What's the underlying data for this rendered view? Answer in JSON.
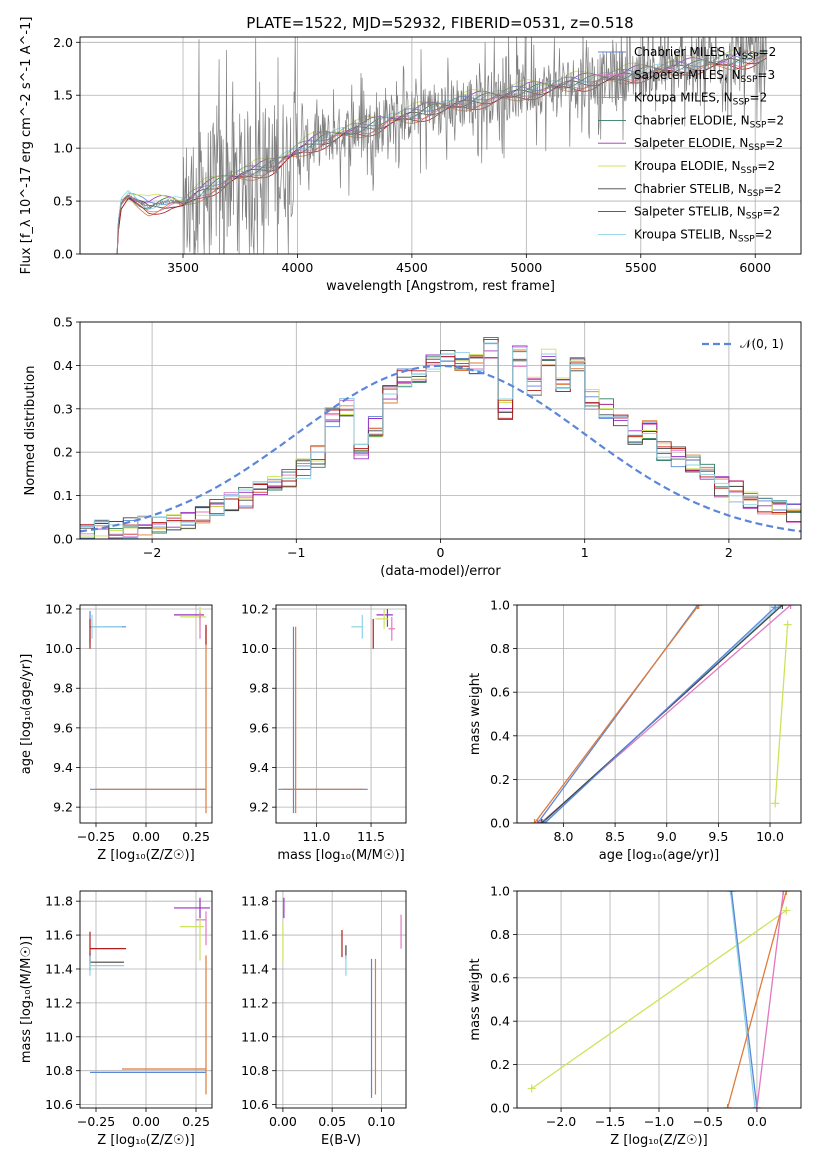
{
  "colors": {
    "Chabrier MILES": "#5b86d9",
    "Salpeter MILES": "#e377c2",
    "Kroupa MILES": "#e07b39",
    "Chabrier ELODIE": "#2f7d5e",
    "Salpeter ELODIE": "#9b30c0",
    "Kroupa ELODIE": "#cde35c",
    "Chabrier STELIB": "#444444",
    "Salpeter STELIB": "#b01c1c",
    "Kroupa STELIB": "#8fd3e6",
    "spectrum": "#808080",
    "gaussian": "#5b86d9"
  },
  "chart_data": [
    {
      "id": "spectrum",
      "type": "line",
      "title": "PLATE=1522, MJD=52932, FIBERID=0531, z=0.518",
      "xlabel": "wavelength [Angstrom, rest frame]",
      "ylabel": "Flux [f_λ 10^-17 erg cm^-2 s^-1 A^-1]",
      "xlim": [
        3050,
        6200
      ],
      "ylim": [
        0,
        2.05
      ],
      "xticks": [
        3500,
        4000,
        4500,
        5000,
        5500,
        6000
      ],
      "yticks": [
        0.0,
        0.5,
        1.0,
        1.5,
        2.0
      ],
      "ytick_labels": [
        "0.0",
        "0.5",
        "1.0",
        "1.5",
        "2.0"
      ],
      "grid": true,
      "legend_position": "right",
      "legend": [
        {
          "model": "Chabrier MILES",
          "label": "Chabrier MILES, N",
          "nssp": "=2"
        },
        {
          "model": "Salpeter MILES",
          "label": "Salpeter MILES, N",
          "nssp": "=3"
        },
        {
          "model": "Kroupa MILES",
          "label": "Kroupa MILES, N",
          "nssp": "=2"
        },
        {
          "model": "Chabrier ELODIE",
          "label": "Chabrier ELODIE, N",
          "nssp": "=2"
        },
        {
          "model": "Salpeter ELODIE",
          "label": "Salpeter ELODIE, N",
          "nssp": "=2"
        },
        {
          "model": "Kroupa ELODIE",
          "label": "Kroupa ELODIE, N",
          "nssp": "=2"
        },
        {
          "model": "Chabrier STELIB",
          "label": "Chabrier STELIB, N",
          "nssp": "=2"
        },
        {
          "model": "Salpeter STELIB",
          "label": "Salpeter STELIB, N",
          "nssp": "=2"
        },
        {
          "model": "Kroupa STELIB",
          "label": "Kroupa STELIB, N",
          "nssp": "=2"
        }
      ],
      "nssp_subscript": "SSP",
      "continuum": {
        "x": [
          3200,
          3230,
          3260,
          3300,
          3350,
          3400,
          3450,
          3500,
          3550,
          3600,
          3700,
          3800,
          3900,
          4000,
          4100,
          4200,
          4300,
          4400,
          4500,
          4600,
          4700,
          4800,
          4900,
          5000,
          5100,
          5200,
          5300,
          5400,
          5500,
          5600,
          5700,
          5800,
          5900,
          6000,
          6050
        ],
        "y": [
          0.0,
          0.48,
          0.55,
          0.5,
          0.45,
          0.48,
          0.5,
          0.48,
          0.55,
          0.62,
          0.72,
          0.78,
          0.85,
          0.98,
          1.08,
          1.15,
          1.2,
          1.27,
          1.32,
          1.38,
          1.42,
          1.47,
          1.5,
          1.55,
          1.58,
          1.62,
          1.65,
          1.68,
          1.72,
          1.75,
          1.78,
          1.8,
          1.83,
          1.86,
          1.88
        ]
      }
    },
    {
      "id": "residuals",
      "type": "line",
      "xlabel": "(data-model)/error",
      "ylabel": "Normed distribution",
      "xlim": [
        -2.5,
        2.5
      ],
      "ylim": [
        0,
        0.5
      ],
      "xticks": [
        -2,
        -1,
        0,
        1,
        2
      ],
      "xtick_labels": [
        "−2",
        "−1",
        "0",
        "1",
        "2"
      ],
      "yticks": [
        0.0,
        0.1,
        0.2,
        0.3,
        0.4,
        0.5
      ],
      "ytick_labels": [
        "0.0",
        "0.1",
        "0.2",
        "0.3",
        "0.4",
        "0.5"
      ],
      "grid": true,
      "legend_label": "𝒩(0, 1)",
      "legend_position": "top-right",
      "gaussian": {
        "mean": 0,
        "sigma": 1
      },
      "bin_edges": [
        -2.5,
        -2.4,
        -2.3,
        -2.2,
        -2.1,
        -2.0,
        -1.9,
        -1.8,
        -1.7,
        -1.6,
        -1.5,
        -1.4,
        -1.3,
        -1.2,
        -1.1,
        -1.0,
        -0.9,
        -0.8,
        -0.7,
        -0.6,
        -0.5,
        -0.4,
        -0.3,
        -0.2,
        -0.1,
        0.0,
        0.1,
        0.2,
        0.3,
        0.4,
        0.5,
        0.6,
        0.7,
        0.8,
        0.9,
        1.0,
        1.1,
        1.2,
        1.3,
        1.4,
        1.5,
        1.6,
        1.7,
        1.8,
        1.9,
        2.0,
        2.1,
        2.2,
        2.3,
        2.4,
        2.5
      ],
      "hist_base": [
        0.015,
        0.02,
        0.02,
        0.025,
        0.03,
        0.035,
        0.04,
        0.045,
        0.06,
        0.07,
        0.085,
        0.095,
        0.11,
        0.12,
        0.14,
        0.16,
        0.19,
        0.28,
        0.3,
        0.2,
        0.26,
        0.33,
        0.37,
        0.38,
        0.4,
        0.42,
        0.41,
        0.4,
        0.44,
        0.3,
        0.42,
        0.35,
        0.42,
        0.36,
        0.4,
        0.32,
        0.3,
        0.27,
        0.23,
        0.25,
        0.2,
        0.19,
        0.17,
        0.15,
        0.12,
        0.11,
        0.09,
        0.075,
        0.065,
        0.06
      ]
    },
    {
      "id": "age_vs_Z",
      "type": "scatter",
      "xlabel": "Z [log₁₀(Z/Z☉)]",
      "ylabel": "age  [log₁₀(age/yr)]",
      "xlim": [
        -0.33,
        0.33
      ],
      "ylim": [
        9.12,
        10.22
      ],
      "xticks": [
        -0.25,
        0.0,
        0.25
      ],
      "xtick_labels": [
        "−0.25",
        "0.00",
        "0.25"
      ],
      "yticks": [
        9.2,
        9.4,
        9.6,
        9.8,
        10.0,
        10.2
      ],
      "grid": true,
      "errorbars": [
        {
          "model": "Chabrier MILES",
          "x": 0.3,
          "y": 9.29,
          "xerr": [
            0.58,
            0.0
          ],
          "yerr": [
            0,
            0
          ]
        },
        {
          "model": "Kroupa MILES",
          "x": 0.3,
          "y": 9.29,
          "xerr": [
            0.55,
            0.0
          ],
          "yerr": [
            0.12,
            0.82
          ]
        },
        {
          "model": "Chabrier MILES",
          "x": -0.28,
          "y": 10.11,
          "xerr": [
            0,
            0.18
          ],
          "yerr": [
            0.08,
            0.08
          ]
        },
        {
          "model": "Kroupa STELIB",
          "x": -0.27,
          "y": 10.11,
          "xerr": [
            0,
            0.15
          ],
          "yerr": [
            0.06,
            0.06
          ]
        },
        {
          "model": "Salpeter STELIB",
          "x": -0.28,
          "y": 10.05,
          "xerr": [
            0,
            0
          ],
          "yerr": [
            0.05,
            0.1
          ]
        },
        {
          "model": "Salpeter ELODIE",
          "x": 0.27,
          "y": 10.17,
          "xerr": [
            0.13,
            0.02
          ],
          "yerr": [
            0.02,
            0.02
          ]
        },
        {
          "model": "Kroupa ELODIE",
          "x": 0.27,
          "y": 10.16,
          "xerr": [
            0.1,
            0.03
          ],
          "yerr": [
            0.05,
            0.05
          ]
        },
        {
          "model": "Salpeter MILES",
          "x": 0.27,
          "y": 10.1,
          "xerr": [
            0,
            0
          ],
          "yerr": [
            0.05,
            0.08
          ]
        },
        {
          "model": "Salpeter STELIB",
          "x": 0.3,
          "y": 10.12,
          "xerr": [
            0,
            0
          ],
          "yerr": [
            0.1,
            0.0
          ]
        }
      ]
    },
    {
      "id": "age_vs_mass",
      "type": "scatter",
      "xlabel": "mass [log₁₀(M/M☉)]",
      "ylabel": "",
      "xlim": [
        10.63,
        11.82
      ],
      "ylim": [
        9.12,
        10.22
      ],
      "xticks": [
        11.0,
        11.5
      ],
      "xtick_labels": [
        "11.0",
        "11.5"
      ],
      "yticks": [
        9.2,
        9.4,
        9.6,
        9.8,
        10.0,
        10.2
      ],
      "grid": true,
      "errorbars": [
        {
          "model": "Chabrier MILES",
          "x": 10.79,
          "y": 9.29,
          "xerr": [
            0.14,
            0.68
          ],
          "yerr": [
            0.12,
            0.82
          ]
        },
        {
          "model": "Kroupa MILES",
          "x": 10.81,
          "y": 9.29,
          "xerr": [
            0.12,
            0.62
          ],
          "yerr": [
            0.12,
            0.82
          ]
        },
        {
          "model": "Kroupa STELIB",
          "x": 11.42,
          "y": 10.11,
          "xerr": [
            0.1,
            0.0
          ],
          "yerr": [
            0.06,
            0.06
          ]
        },
        {
          "model": "Salpeter STELIB",
          "x": 11.52,
          "y": 10.05,
          "xerr": [
            0,
            0
          ],
          "yerr": [
            0.05,
            0.1
          ]
        },
        {
          "model": "Salpeter ELODIE",
          "x": 11.65,
          "y": 10.17,
          "xerr": [
            0.1,
            0.05
          ],
          "yerr": [
            0.06,
            0.03
          ]
        },
        {
          "model": "Kroupa ELODIE",
          "x": 11.62,
          "y": 10.15,
          "xerr": [
            0.08,
            0.04
          ],
          "yerr": [
            0.05,
            0.05
          ]
        },
        {
          "model": "Salpeter MILES",
          "x": 11.69,
          "y": 10.1,
          "xerr": [
            0.03,
            0.03
          ],
          "yerr": [
            0.06,
            0.06
          ]
        }
      ]
    },
    {
      "id": "weight_vs_age",
      "type": "line",
      "xlabel": "age  [log₁₀(age/yr)]",
      "ylabel": "mass weight",
      "xlim": [
        7.55,
        10.3
      ],
      "ylim": [
        0,
        1.0
      ],
      "xticks": [
        8.0,
        8.5,
        9.0,
        9.5,
        10.0
      ],
      "yticks": [
        0.0,
        0.2,
        0.4,
        0.6,
        0.8,
        1.0
      ],
      "grid": true,
      "series": [
        {
          "model": "Chabrier MILES",
          "x": [
            7.75,
            9.3
          ],
          "y": [
            0.0,
            1.0
          ]
        },
        {
          "model": "Kroupa MILES",
          "x": [
            7.72,
            9.31
          ],
          "y": [
            0.0,
            1.0
          ]
        },
        {
          "model": "Salpeter MILES",
          "x": [
            7.78,
            10.2
          ],
          "y": [
            0.0,
            1.0
          ]
        },
        {
          "model": "Kroupa STELIB",
          "x": [
            7.8,
            10.1
          ],
          "y": [
            0.0,
            1.0
          ]
        },
        {
          "model": "Chabrier STELIB",
          "x": [
            7.79,
            10.12
          ],
          "y": [
            0.0,
            1.0
          ]
        },
        {
          "model": "Kroupa ELODIE",
          "x": [
            10.05,
            10.17
          ],
          "y": [
            0.09,
            0.91
          ]
        },
        {
          "model": "Chabrier MILES",
          "x": [
            7.82,
            10.05
          ],
          "y": [
            0.0,
            0.99
          ]
        }
      ]
    },
    {
      "id": "mass_vs_Z",
      "type": "scatter",
      "xlabel": "Z [log₁₀(Z/Z☉)]",
      "ylabel": "mass [log₁₀(M/M☉)]",
      "xlim": [
        -0.33,
        0.33
      ],
      "ylim": [
        10.58,
        11.86
      ],
      "xticks": [
        -0.25,
        0.0,
        0.25
      ],
      "xtick_labels": [
        "−0.25",
        "0.00",
        "0.25"
      ],
      "yticks": [
        10.6,
        10.8,
        11.0,
        11.2,
        11.4,
        11.6,
        11.8
      ],
      "grid": true,
      "errorbars": [
        {
          "model": "Chabrier MILES",
          "x": 0.3,
          "y": 10.79,
          "xerr": [
            0.58,
            0.0
          ],
          "yerr": [
            0,
            0
          ]
        },
        {
          "model": "Kroupa MILES",
          "x": 0.3,
          "y": 10.81,
          "xerr": [
            0.42,
            0.0
          ],
          "yerr": [
            0.15,
            0.67
          ]
        },
        {
          "model": "Salpeter STELIB",
          "x": -0.28,
          "y": 11.52,
          "xerr": [
            0,
            0.18
          ],
          "yerr": [
            0.08,
            0.1
          ]
        },
        {
          "model": "Chabrier STELIB",
          "x": -0.28,
          "y": 11.44,
          "xerr": [
            0,
            0.17
          ],
          "yerr": [
            0.05,
            0.05
          ]
        },
        {
          "model": "Kroupa STELIB",
          "x": -0.28,
          "y": 11.42,
          "xerr": [
            0,
            0.17
          ],
          "yerr": [
            0.06,
            0.06
          ]
        },
        {
          "model": "Salpeter ELODIE",
          "x": 0.27,
          "y": 11.76,
          "xerr": [
            0.13,
            0.05
          ],
          "yerr": [
            0.06,
            0.06
          ]
        },
        {
          "model": "Salpeter MILES",
          "x": 0.3,
          "y": 11.69,
          "xerr": [
            0.05,
            0.0
          ],
          "yerr": [
            0.15,
            0.05
          ]
        },
        {
          "model": "Kroupa ELODIE",
          "x": 0.27,
          "y": 11.65,
          "xerr": [
            0.1,
            0.02
          ],
          "yerr": [
            0.2,
            0.05
          ]
        }
      ]
    },
    {
      "id": "mass_vs_ebv",
      "type": "scatter",
      "xlabel": "E(B-V)",
      "ylabel": "",
      "xlim": [
        -0.007,
        0.125
      ],
      "ylim": [
        10.58,
        11.86
      ],
      "xticks": [
        0.0,
        0.05,
        0.1
      ],
      "xtick_labels": [
        "0.00",
        "0.05",
        "0.10"
      ],
      "yticks": [
        10.6,
        10.8,
        11.0,
        11.2,
        11.4,
        11.6,
        11.8
      ],
      "grid": true,
      "errorbars": [
        {
          "model": "Chabrier MILES",
          "x": 0.09,
          "y": 10.79,
          "xerr": [
            0,
            0
          ],
          "yerr": [
            0.15,
            0.67
          ]
        },
        {
          "model": "Kroupa MILES",
          "x": 0.094,
          "y": 10.81,
          "xerr": [
            0,
            0
          ],
          "yerr": [
            0.15,
            0.65
          ]
        },
        {
          "model": "Salpeter ELODIE",
          "x": 0.001,
          "y": 11.76,
          "xerr": [
            0,
            0
          ],
          "yerr": [
            0.06,
            0.06
          ]
        },
        {
          "model": "Kroupa ELODIE",
          "x": 0.0,
          "y": 11.62,
          "xerr": [
            0,
            0
          ],
          "yerr": [
            0.18,
            0.05
          ]
        },
        {
          "model": "Salpeter STELIB",
          "x": 0.06,
          "y": 11.55,
          "xerr": [
            0,
            0
          ],
          "yerr": [
            0.08,
            0.08
          ]
        },
        {
          "model": "Chabrier STELIB",
          "x": 0.064,
          "y": 11.5,
          "xerr": [
            0,
            0
          ],
          "yerr": [
            0.04,
            0.04
          ]
        },
        {
          "model": "Kroupa STELIB",
          "x": 0.064,
          "y": 11.42,
          "xerr": [
            0,
            0
          ],
          "yerr": [
            0.06,
            0.06
          ]
        },
        {
          "model": "Salpeter MILES",
          "x": 0.12,
          "y": 11.62,
          "xerr": [
            0,
            0
          ],
          "yerr": [
            0.1,
            0.1
          ]
        }
      ]
    },
    {
      "id": "weight_vs_Z",
      "type": "line",
      "xlabel": "Z [log₁₀(Z/Z☉)]",
      "ylabel": "mass weight",
      "xlim": [
        -2.45,
        0.45
      ],
      "ylim": [
        0,
        1.0
      ],
      "xticks": [
        -2.0,
        -1.5,
        -1.0,
        -0.5,
        0.0
      ],
      "xtick_labels": [
        "−2.0",
        "−1.5",
        "−1.0",
        "−0.5",
        "0.0"
      ],
      "yticks": [
        0.0,
        0.2,
        0.4,
        0.6,
        0.8,
        1.0
      ],
      "grid": true,
      "series": [
        {
          "model": "Kroupa ELODIE",
          "x": [
            -2.3,
            0.3
          ],
          "y": [
            0.09,
            0.91
          ]
        },
        {
          "model": "Kroupa STELIB",
          "x": [
            -0.27,
            -0.02
          ],
          "y": [
            1.0,
            0.0
          ]
        },
        {
          "model": "Chabrier MILES",
          "x": [
            -0.26,
            0.0
          ],
          "y": [
            1.0,
            0.0
          ]
        },
        {
          "model": "Kroupa MILES",
          "x": [
            -0.3,
            0.3
          ],
          "y": [
            0.0,
            1.0
          ]
        },
        {
          "model": "Salpeter MILES",
          "x": [
            0.0,
            0.27
          ],
          "y": [
            0.0,
            1.0
          ]
        }
      ]
    }
  ]
}
